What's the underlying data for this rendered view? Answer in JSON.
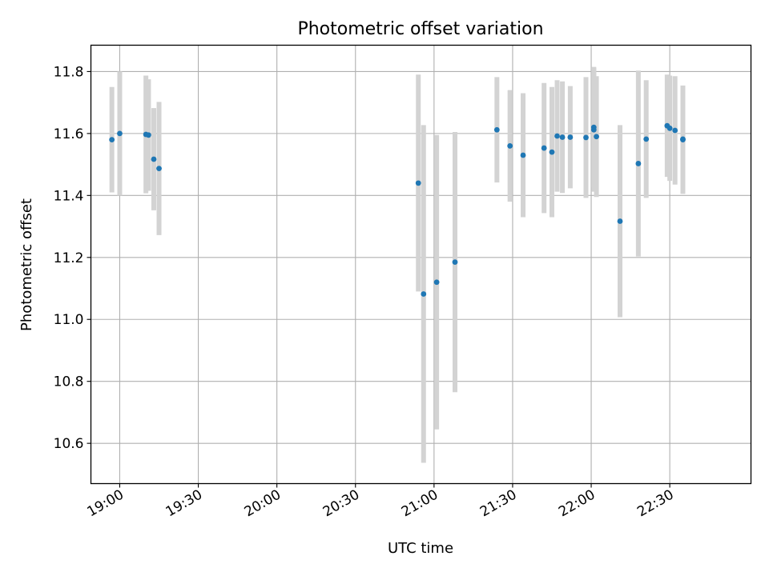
{
  "chart_data": {
    "type": "scatter",
    "title": "Photometric offset variation",
    "xlabel": "UTC time",
    "ylabel": "Photometric offset",
    "x_ticks": [
      "19:00",
      "19:30",
      "20:00",
      "20:30",
      "21:00",
      "21:30",
      "22:00",
      "22:30"
    ],
    "y_ticks": [
      10.6,
      10.8,
      11.0,
      11.2,
      11.4,
      11.6,
      11.8
    ],
    "xlim": [
      "18:49",
      "23:01"
    ],
    "ylim": [
      10.47,
      11.885
    ],
    "grid": true,
    "colors": {
      "points": "#1f77b4",
      "error_bars": "#d3d3d3",
      "grid": "#b0b0b0"
    },
    "points": [
      {
        "x": "18:57",
        "y": 11.58,
        "err": 0.17
      },
      {
        "x": "19:00",
        "y": 11.6,
        "err": 0.2
      },
      {
        "x": "19:10",
        "y": 11.597,
        "err": 0.19
      },
      {
        "x": "19:11",
        "y": 11.595,
        "err": 0.18
      },
      {
        "x": "19:13",
        "y": 11.517,
        "err": 0.165
      },
      {
        "x": "19:15",
        "y": 11.487,
        "err": 0.215
      },
      {
        "x": "20:54",
        "y": 11.44,
        "err": 0.35
      },
      {
        "x": "20:56",
        "y": 11.082,
        "err": 0.545
      },
      {
        "x": "21:01",
        "y": 11.12,
        "err": 0.475
      },
      {
        "x": "21:08",
        "y": 11.185,
        "err": 0.42
      },
      {
        "x": "21:24",
        "y": 11.612,
        "err": 0.17
      },
      {
        "x": "21:29",
        "y": 11.56,
        "err": 0.18
      },
      {
        "x": "21:34",
        "y": 11.53,
        "err": 0.2
      },
      {
        "x": "21:42",
        "y": 11.553,
        "err": 0.21
      },
      {
        "x": "21:45",
        "y": 11.54,
        "err": 0.21
      },
      {
        "x": "21:47",
        "y": 11.592,
        "err": 0.18
      },
      {
        "x": "21:49",
        "y": 11.588,
        "err": 0.18
      },
      {
        "x": "21:52",
        "y": 11.588,
        "err": 0.165
      },
      {
        "x": "21:58",
        "y": 11.587,
        "err": 0.195
      },
      {
        "x": "22:01",
        "y": 11.62,
        "err": 0.195
      },
      {
        "x": "22:01",
        "y": 11.612,
        "err": 0.2
      },
      {
        "x": "22:02",
        "y": 11.59,
        "err": 0.195
      },
      {
        "x": "22:11",
        "y": 11.317,
        "err": 0.31
      },
      {
        "x": "22:18",
        "y": 11.503,
        "err": 0.3
      },
      {
        "x": "22:21",
        "y": 11.582,
        "err": 0.19
      },
      {
        "x": "22:29",
        "y": 11.625,
        "err": 0.165
      },
      {
        "x": "22:30",
        "y": 11.617,
        "err": 0.17
      },
      {
        "x": "22:32",
        "y": 11.61,
        "err": 0.175
      },
      {
        "x": "22:35",
        "y": 11.58,
        "err": 0.175
      },
      {
        "x": "22:35",
        "y": 11.582,
        "err": 0.17
      }
    ]
  }
}
